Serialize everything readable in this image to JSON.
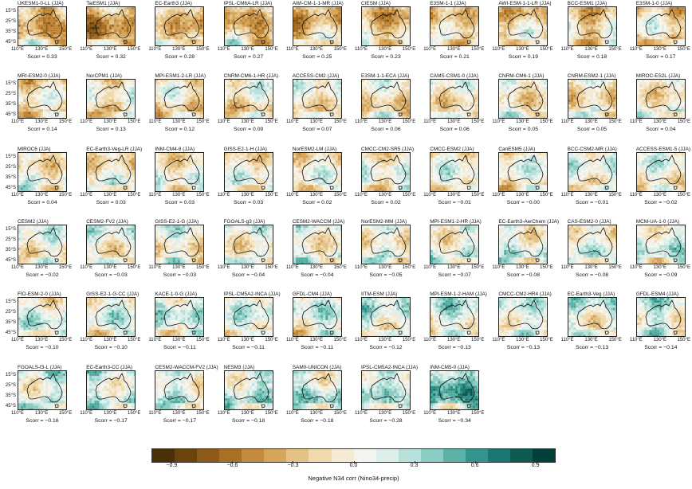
{
  "chart_data": {
    "type": "heatmap",
    "title": "",
    "season": "JJA",
    "variable_label": "Negative N34 corr (Nino34-precip)",
    "map_region": "Australia",
    "x_ticks": [
      "110°E",
      "130°E",
      "150°E"
    ],
    "y_ticks": [
      "15°S",
      "25°S",
      "35°S",
      "45°S"
    ],
    "colorbar": {
      "ticks": [
        "−0.9",
        "−0.6",
        "−0.3",
        "0.0",
        "0.3",
        "0.6",
        "0.9"
      ],
      "range": [
        -1.0,
        1.0
      ],
      "colors": [
        "#4a3007",
        "#6b440d",
        "#8d5a17",
        "#a96f23",
        "#c38b3b",
        "#d6a55c",
        "#e4c285",
        "#efd9ad",
        "#f6ead2",
        "#f5f5ef",
        "#dcefeb",
        "#b9e1db",
        "#8ccdc3",
        "#5ab2a7",
        "#32958b",
        "#1b776f",
        "#0d5a53",
        "#033f39"
      ]
    },
    "models": [
      {
        "name": "UKESM1-0-LL (JJA)",
        "scorr": "Scorr = 0.33"
      },
      {
        "name": "TaiESM1 (JJA)",
        "scorr": "Scorr = 0.32"
      },
      {
        "name": "EC-Earth3 (JJA)",
        "scorr": "Scorr = 0.28"
      },
      {
        "name": "IPSL-CM6A-LR (JJA)",
        "scorr": "Scorr = 0.27"
      },
      {
        "name": "AWI-CM-1-1-MR (JJA)",
        "scorr": "Scorr = 0.25"
      },
      {
        "name": "CIESM (JJA)",
        "scorr": "Scorr = 0.23"
      },
      {
        "name": "E3SM-1-1 (JJA)",
        "scorr": "Scorr = 0.21"
      },
      {
        "name": "AWI-ESM-1-1-LR (JJA)",
        "scorr": "Scorr = 0.19"
      },
      {
        "name": "BCC-ESM1 (JJA)",
        "scorr": "Scorr = 0.18"
      },
      {
        "name": "E3SM-1-0 (JJA)",
        "scorr": "Scorr = 0.17"
      },
      {
        "name": "MRI-ESM2-0 (JJA)",
        "scorr": "Scorr = 0.14"
      },
      {
        "name": "NorCPM1 (JJA)",
        "scorr": "Scorr = 0.13"
      },
      {
        "name": "MPI-ESM1-2-LR (JJA)",
        "scorr": "Scorr = 0.12"
      },
      {
        "name": "CNRM-CM6-1-HR (JJA)",
        "scorr": "Scorr = 0.09"
      },
      {
        "name": "ACCESS-CM2 (JJA)",
        "scorr": "Scorr = 0.07"
      },
      {
        "name": "E3SM-1-1-ECA (JJA)",
        "scorr": "Scorr = 0.06"
      },
      {
        "name": "CAMS-CSM1-0 (JJA)",
        "scorr": "Scorr = 0.06"
      },
      {
        "name": "CNRM-CM6-1 (JJA)",
        "scorr": "Scorr = 0.05"
      },
      {
        "name": "CNRM-ESM2-1 (JJA)",
        "scorr": "Scorr = 0.05"
      },
      {
        "name": "MIROC-ES2L (JJA)",
        "scorr": "Scorr = 0.04"
      },
      {
        "name": "MIROC6 (JJA)",
        "scorr": "Scorr = 0.04"
      },
      {
        "name": "EC-Earth3-Veg-LR (JJA)",
        "scorr": "Scorr = 0.03"
      },
      {
        "name": "INM-CM4-8 (JJA)",
        "scorr": "Scorr = 0.03"
      },
      {
        "name": "GISS-E2-1-H (JJA)",
        "scorr": "Scorr = 0.03"
      },
      {
        "name": "NorESM2-LM (JJA)",
        "scorr": "Scorr = 0.02"
      },
      {
        "name": "CMCC-CM2-SR5 (JJA)",
        "scorr": "Scorr = 0.02"
      },
      {
        "name": "CMCC-ESM2 (JJA)",
        "scorr": "Scorr = −0.01"
      },
      {
        "name": "CanESM5 (JJA)",
        "scorr": "Scorr = −0.00"
      },
      {
        "name": "BCC-CSM2-MR (JJA)",
        "scorr": "Scorr = −0.01"
      },
      {
        "name": "ACCESS-ESM1-5 (JJA)",
        "scorr": "Scorr = −0.02"
      },
      {
        "name": "CESM2 (JJA)",
        "scorr": "Scorr = −0.02"
      },
      {
        "name": "CESM2-FV2 (JJA)",
        "scorr": "Scorr = −0.03"
      },
      {
        "name": "GISS-E2-1-G (JJA)",
        "scorr": "Scorr = −0.03"
      },
      {
        "name": "FGOALS-g3 (JJA)",
        "scorr": "Scorr = −0.04"
      },
      {
        "name": "CESM2-WACCM (JJA)",
        "scorr": "Scorr = −0.04"
      },
      {
        "name": "NorESM2-MM (JJA)",
        "scorr": "Scorr = −0.05"
      },
      {
        "name": "MPI-ESM1-2-HR (JJA)",
        "scorr": "Scorr = −0.07"
      },
      {
        "name": "EC-Earth3-AerChem (JJA)",
        "scorr": "Scorr = −0.08"
      },
      {
        "name": "CAS-ESM2-0 (JJA)",
        "scorr": "Scorr = −0.08"
      },
      {
        "name": "MCM-UA-1-0 (JJA)",
        "scorr": "Scorr = −0.09"
      },
      {
        "name": "FIO-ESM-2-0 (JJA)",
        "scorr": "Scorr = −0.10"
      },
      {
        "name": "GISS-E2-1-G-CC (JJA)",
        "scorr": "Scorr = −0.10"
      },
      {
        "name": "KACE-1-0-G (JJA)",
        "scorr": "Scorr = −0.11"
      },
      {
        "name": "IPSL-CM5A2-INCA (JJA)",
        "scorr": "Scorr = −0.11"
      },
      {
        "name": "GFDL-CM4 (JJA)",
        "scorr": "Scorr = −0.11"
      },
      {
        "name": "IITM-ESM (JJA)",
        "scorr": "Scorr = −0.12"
      },
      {
        "name": "MPI-ESM-1-2-HAM (JJA)",
        "scorr": "Scorr = −0.13"
      },
      {
        "name": "CMCC-CM2-HR4 (JJA)",
        "scorr": "Scorr = −0.13"
      },
      {
        "name": "EC-Earth3-Veg (JJA)",
        "scorr": "Scorr = −0.13"
      },
      {
        "name": "GFDL-ESM4 (JJA)",
        "scorr": "Scorr = −0.14"
      },
      {
        "name": "FGOALS-f3-L (JJA)",
        "scorr": "Scorr = −0.16"
      },
      {
        "name": "EC-Earth3-CC (JJA)",
        "scorr": "Scorr = −0.17"
      },
      {
        "name": "CESM2-WACCM-FV2 (JJA)",
        "scorr": "Scorr = −0.17"
      },
      {
        "name": "NESM3 (JJA)",
        "scorr": "Scorr = −0.18"
      },
      {
        "name": "SAM0-UNICON (JJA)",
        "scorr": "Scorr = −0.18"
      },
      {
        "name": "IPSL-CM5A2-INCA (JJA)",
        "scorr": "Scorr = −0.28"
      },
      {
        "name": "INM-CM5-0 (JJA)",
        "scorr": "Scorr = −0.34"
      }
    ]
  }
}
